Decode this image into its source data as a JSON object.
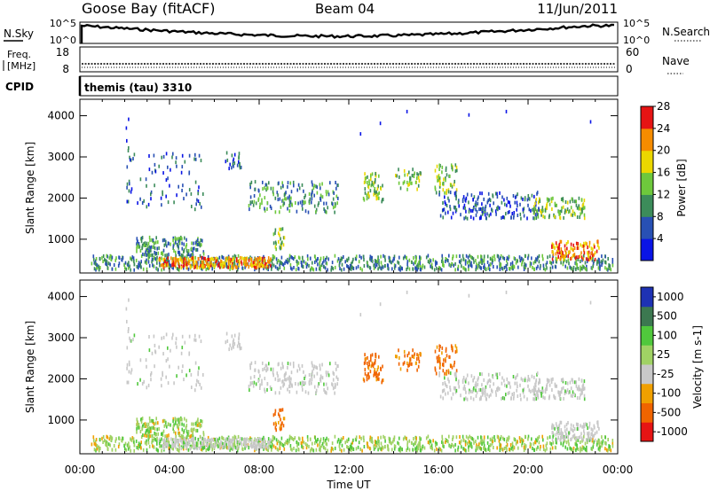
{
  "header": {
    "station": "Goose Bay (fitACF)",
    "beam": "Beam 04",
    "date": "11/Jun/2011"
  },
  "noise_panel": {
    "left_label": "N.Sky",
    "right_label": "N.Search",
    "left_ticks": [
      "10^5",
      "10^0"
    ],
    "right_ticks": [
      "10^5",
      "10^0"
    ]
  },
  "freq_panel": {
    "left_label_1": "Freq.",
    "left_label_2": "[MHz]",
    "left_ticks": [
      "18",
      "8"
    ],
    "right_label": "Nave",
    "right_ticks": [
      "60",
      "0"
    ]
  },
  "cpid_panel": {
    "label": "CPID",
    "value": "themis (tau) 3310"
  },
  "time_axis": {
    "label": "Time UT",
    "ticks": [
      "00:00",
      "04:00",
      "08:00",
      "12:00",
      "16:00",
      "20:00",
      "00:00"
    ]
  },
  "chart_data": [
    {
      "type": "heatmap",
      "title": "",
      "xlabel": "",
      "ylabel": "Slant Range [km]",
      "xlim": [
        0,
        24
      ],
      "ylim": [
        180,
        4400
      ],
      "yticks": [
        1000,
        2000,
        3000,
        4000
      ],
      "colorbar": {
        "label": "Power [dB]",
        "ticks": [
          "4",
          "8",
          "12",
          "16",
          "20",
          "24",
          "28"
        ],
        "colors": [
          "#0a14e6",
          "#2850b4",
          "#3c8c5a",
          "#6ec83c",
          "#ebd700",
          "#f58c00",
          "#e61414"
        ]
      }
    },
    {
      "type": "heatmap",
      "title": "",
      "xlabel": "Time UT",
      "ylabel": "Slant Range [km]",
      "xlim": [
        0,
        24
      ],
      "ylim": [
        180,
        4400
      ],
      "yticks": [
        1000,
        2000,
        3000,
        4000
      ],
      "colorbar": {
        "label": "Velocity [m s-1]",
        "ticks": [
          "1000",
          "500",
          "100",
          "25",
          "-25",
          "-100",
          "-500",
          "-1000"
        ],
        "colors": [
          "#1e32b4",
          "#3c7850",
          "#50c83c",
          "#a0d264",
          "#c8c8c8",
          "#f0a000",
          "#f06400",
          "#e61414"
        ]
      }
    }
  ]
}
